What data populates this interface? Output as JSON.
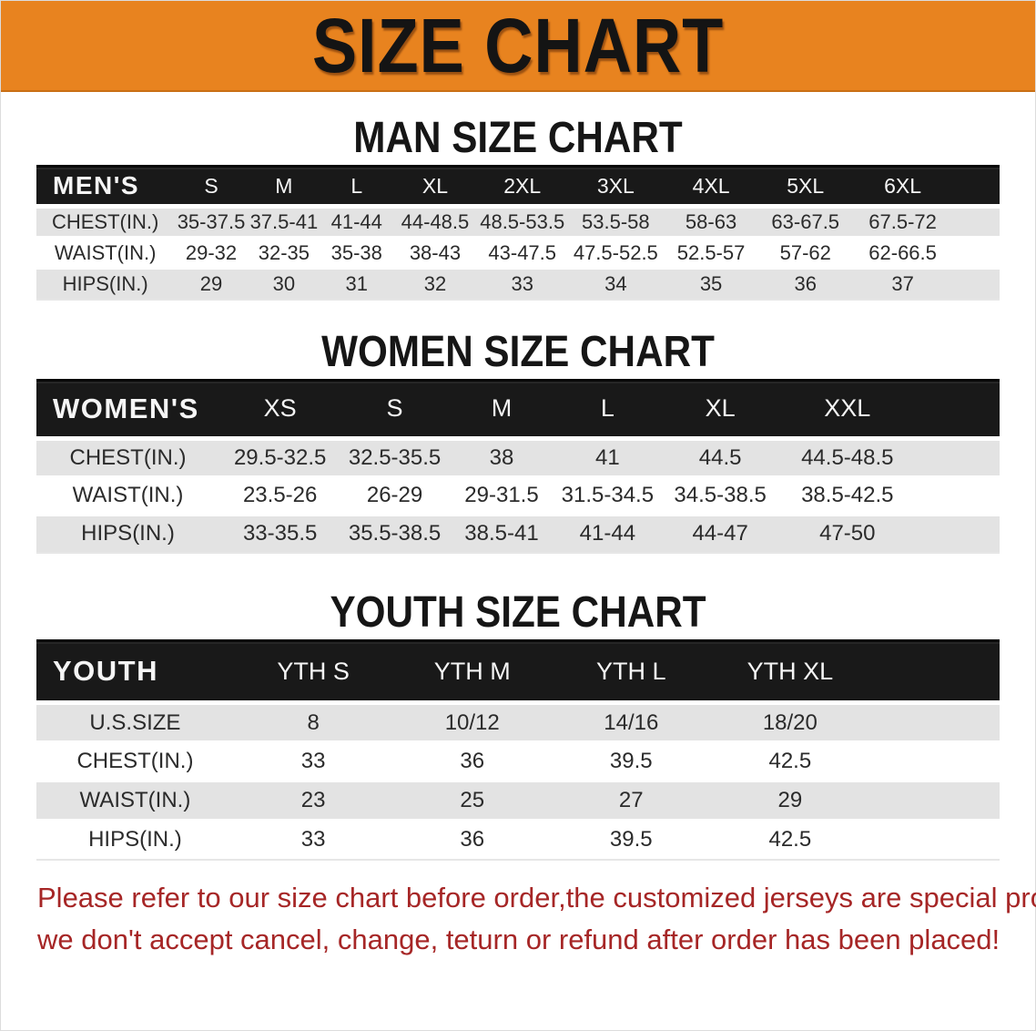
{
  "banner": {
    "title": "SIZE CHART",
    "bg_color": "#E8831F"
  },
  "colors": {
    "table_header_bar": "#191919",
    "row_alt_gray": "#e3e3e3",
    "footer_red": "#a62626"
  },
  "sections": [
    {
      "heading": "MAN SIZE CHART",
      "table": {
        "label_header": "MEN'S",
        "columns": [
          "S",
          "M",
          "L",
          "XL",
          "2XL",
          "3XL",
          "4XL",
          "5XL",
          "6XL"
        ],
        "rows": [
          {
            "label": "CHEST(IN.)",
            "values": [
              "35-37.5",
              "37.5-41",
              "41-44",
              "44-48.5",
              "48.5-53.5",
              "53.5-58",
              "58-63",
              "63-67.5",
              "67.5-72"
            ]
          },
          {
            "label": "WAIST(IN.)",
            "values": [
              "29-32",
              "32-35",
              "35-38",
              "38-43",
              "43-47.5",
              "47.5-52.5",
              "52.5-57",
              "57-62",
              "62-66.5"
            ]
          },
          {
            "label": "HIPS(IN.)",
            "values": [
              "29",
              "30",
              "31",
              "32",
              "33",
              "34",
              "35",
              "36",
              "37"
            ]
          }
        ]
      }
    },
    {
      "heading": "WOMEN SIZE CHART",
      "table": {
        "label_header": "WOMEN'S",
        "columns": [
          "XS",
          "S",
          "M",
          "L",
          "XL",
          "XXL"
        ],
        "rows": [
          {
            "label": "CHEST(IN.)",
            "values": [
              "29.5-32.5",
              "32.5-35.5",
              "38",
              "41",
              "44.5",
              "44.5-48.5"
            ]
          },
          {
            "label": "WAIST(IN.)",
            "values": [
              "23.5-26",
              "26-29",
              "29-31.5",
              "31.5-34.5",
              "34.5-38.5",
              "38.5-42.5"
            ]
          },
          {
            "label": "HIPS(IN.)",
            "values": [
              "33-35.5",
              "35.5-38.5",
              "38.5-41",
              "41-44",
              "44-47",
              "47-50"
            ]
          }
        ]
      }
    },
    {
      "heading": "YOUTH SIZE CHART",
      "table": {
        "label_header": "YOUTH",
        "columns": [
          "YTH S",
          "YTH M",
          "YTH L",
          "YTH XL"
        ],
        "rows": [
          {
            "label": "U.S.SIZE",
            "values": [
              "8",
              "10/12",
              "14/16",
              "18/20"
            ]
          },
          {
            "label": "CHEST(IN.)",
            "values": [
              "33",
              "36",
              "39.5",
              "42.5"
            ]
          },
          {
            "label": "WAIST(IN.)",
            "values": [
              "23",
              "25",
              "27",
              "29"
            ]
          },
          {
            "label": "HIPS(IN.)",
            "values": [
              "33",
              "36",
              "39.5",
              "42.5"
            ]
          }
        ]
      }
    }
  ],
  "footer": {
    "line1": "Please refer to our size chart before order,the customized jerseys are special products,",
    "line2": "we don't accept cancel, change, teturn or refund after order has been placed!"
  }
}
